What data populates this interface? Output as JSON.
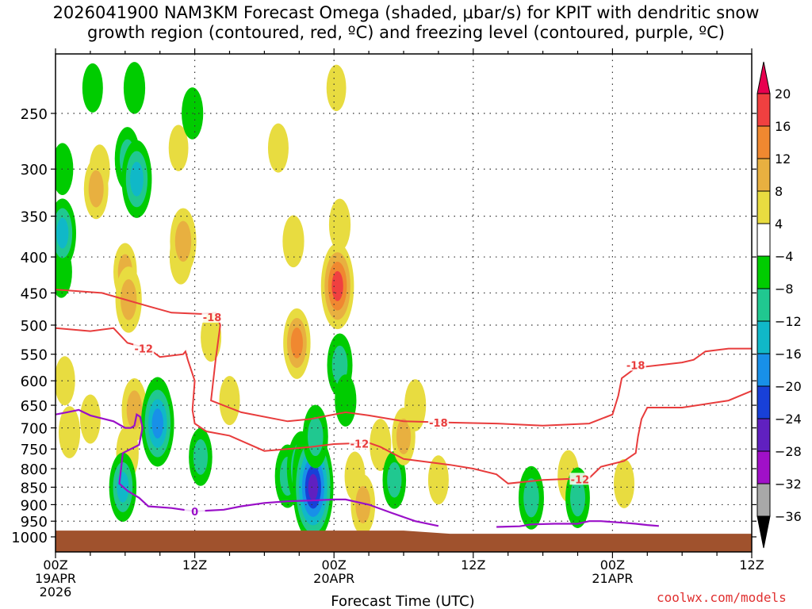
{
  "chart_data": {
    "type": "heatmap",
    "title_line1": "2026041900 NAM3KM Forecast Omega (shaded, μbar/s) for KPIT with dendritic snow",
    "title_line2": "growth region (contoured, red, ºC) and freezing level (contoured, purple, ºC)",
    "xlabel": "Forecast Time (UTC)",
    "ylabel": "",
    "x_unit": "hours since 2026-04-19 00Z",
    "xlim": [
      0,
      60
    ],
    "ylim": [
      1020,
      210
    ],
    "x_ticks": [
      {
        "x": 0,
        "label": "00Z",
        "sub1": "19APR",
        "sub2": "2026"
      },
      {
        "x": 12,
        "label": "12Z",
        "sub1": "",
        "sub2": ""
      },
      {
        "x": 24,
        "label": "00Z",
        "sub1": "20APR",
        "sub2": ""
      },
      {
        "x": 36,
        "label": "12Z",
        "sub1": "",
        "sub2": ""
      },
      {
        "x": 48,
        "label": "00Z",
        "sub1": "21APR",
        "sub2": ""
      },
      {
        "x": 60,
        "label": "12Z",
        "sub1": "",
        "sub2": ""
      }
    ],
    "y_ticks": [
      250,
      300,
      350,
      400,
      450,
      500,
      550,
      600,
      650,
      700,
      750,
      800,
      850,
      900,
      950,
      1000
    ],
    "colorbar": {
      "levels": [
        "20",
        "16",
        "12",
        "8",
        "4",
        "-4",
        "-8",
        "-12",
        "-16",
        "-20",
        "-24",
        "-28",
        "-32",
        "-36"
      ],
      "colors": [
        "#e8004f",
        "#f04040",
        "#f08830",
        "#e8b040",
        "#e8dc40",
        "#ffffff",
        "#00cc00",
        "#20c890",
        "#10b8c8",
        "#1890e8",
        "#1840d8",
        "#6020c0",
        "#a010c8",
        "#a8a8a8",
        "#000000"
      ]
    },
    "omega_cells": [
      {
        "t": 0.5,
        "p": 420,
        "v": -6
      },
      {
        "t": 0.6,
        "p": 370,
        "v": -12
      },
      {
        "t": 0.6,
        "p": 300,
        "v": -6
      },
      {
        "t": 1.2,
        "p": 710,
        "v": 6
      },
      {
        "t": 0.8,
        "p": 600,
        "v": 5
      },
      {
        "t": 3.8,
        "p": 300,
        "v": 5
      },
      {
        "t": 3.5,
        "p": 320,
        "v": 9
      },
      {
        "t": 3.2,
        "p": 230,
        "v": -5
      },
      {
        "t": 3.0,
        "p": 680,
        "v": 5
      },
      {
        "t": 6.2,
        "p": 290,
        "v": -10
      },
      {
        "t": 7.0,
        "p": 310,
        "v": -15
      },
      {
        "t": 6.8,
        "p": 230,
        "v": -6
      },
      {
        "t": 6.0,
        "p": 420,
        "v": 8
      },
      {
        "t": 6.3,
        "p": 460,
        "v": 11
      },
      {
        "t": 6.8,
        "p": 660,
        "v": 10
      },
      {
        "t": 6.2,
        "p": 760,
        "v": 7
      },
      {
        "t": 5.8,
        "p": 850,
        "v": -12
      },
      {
        "t": 8.8,
        "p": 670,
        "v": -14
      },
      {
        "t": 8.8,
        "p": 690,
        "v": -18
      },
      {
        "t": 10.8,
        "p": 400,
        "v": 7
      },
      {
        "t": 11.0,
        "p": 380,
        "v": 11
      },
      {
        "t": 10.6,
        "p": 280,
        "v": 4
      },
      {
        "t": 11.8,
        "p": 250,
        "v": -6
      },
      {
        "t": 12.5,
        "p": 770,
        "v": -8
      },
      {
        "t": 13.4,
        "p": 520,
        "v": 5
      },
      {
        "t": 15.0,
        "p": 640,
        "v": 5
      },
      {
        "t": 19.2,
        "p": 280,
        "v": 5
      },
      {
        "t": 20.5,
        "p": 380,
        "v": 6
      },
      {
        "t": 20.8,
        "p": 540,
        "v": 9
      },
      {
        "t": 20.8,
        "p": 530,
        "v": 12
      },
      {
        "t": 20.0,
        "p": 820,
        "v": -10
      },
      {
        "t": 21.2,
        "p": 800,
        "v": -14
      },
      {
        "t": 22.0,
        "p": 820,
        "v": -22
      },
      {
        "t": 22.2,
        "p": 850,
        "v": -26
      },
      {
        "t": 22.4,
        "p": 720,
        "v": -10
      },
      {
        "t": 24.3,
        "p": 430,
        "v": 12
      },
      {
        "t": 24.3,
        "p": 440,
        "v": 18
      },
      {
        "t": 24.5,
        "p": 360,
        "v": 6
      },
      {
        "t": 24.5,
        "p": 570,
        "v": -10
      },
      {
        "t": 25.0,
        "p": 640,
        "v": -6
      },
      {
        "t": 25.8,
        "p": 820,
        "v": 5
      },
      {
        "t": 26.5,
        "p": 900,
        "v": 9
      },
      {
        "t": 28.0,
        "p": 740,
        "v": 6
      },
      {
        "t": 29.2,
        "p": 830,
        "v": -8
      },
      {
        "t": 30.0,
        "p": 720,
        "v": 8
      },
      {
        "t": 31.0,
        "p": 650,
        "v": 6
      },
      {
        "t": 33.0,
        "p": 830,
        "v": 5
      },
      {
        "t": 41.0,
        "p": 880,
        "v": -10
      },
      {
        "t": 44.2,
        "p": 820,
        "v": 6
      },
      {
        "t": 45.0,
        "p": 880,
        "v": -9
      },
      {
        "t": 49.0,
        "p": 840,
        "v": 5
      },
      {
        "t": 24.2,
        "p": 230,
        "v": 4
      }
    ],
    "dgz_contours": [
      {
        "label": "-18",
        "points": [
          [
            0,
            445
          ],
          [
            4,
            450
          ],
          [
            8,
            470
          ],
          [
            10,
            480
          ],
          [
            12.5,
            482
          ],
          [
            13.8,
            480
          ],
          [
            14.2,
            500
          ],
          [
            13.8,
            560
          ],
          [
            13.4,
            640
          ],
          [
            16,
            665
          ],
          [
            20,
            685
          ],
          [
            22,
            680
          ],
          [
            25,
            665
          ],
          [
            27,
            672
          ],
          [
            30,
            685
          ],
          [
            34,
            688
          ],
          [
            38,
            690
          ],
          [
            42,
            695
          ],
          [
            46,
            690
          ],
          [
            48,
            670
          ],
          [
            48.5,
            630
          ],
          [
            48.8,
            595
          ],
          [
            50,
            575
          ],
          [
            54,
            565
          ],
          [
            55,
            560
          ],
          [
            56,
            545
          ],
          [
            58,
            540
          ],
          [
            60,
            540
          ]
        ]
      },
      {
        "label": "-12",
        "points": [
          [
            0,
            505
          ],
          [
            3,
            510
          ],
          [
            5,
            505
          ],
          [
            6.2,
            530
          ],
          [
            8,
            540
          ],
          [
            9,
            555
          ],
          [
            11,
            550
          ],
          [
            11.2,
            545
          ],
          [
            11.4,
            560
          ],
          [
            12,
            600
          ],
          [
            11.8,
            660
          ],
          [
            12,
            690
          ],
          [
            13,
            708
          ],
          [
            15,
            718
          ],
          [
            18,
            755
          ],
          [
            20,
            750
          ],
          [
            22,
            745
          ],
          [
            24,
            738
          ],
          [
            27,
            735
          ],
          [
            28,
            745
          ],
          [
            30,
            775
          ],
          [
            34,
            790
          ],
          [
            36,
            800
          ],
          [
            38,
            815
          ],
          [
            39,
            840
          ],
          [
            42,
            830
          ],
          [
            46,
            825
          ],
          [
            47,
            795
          ],
          [
            49,
            780
          ],
          [
            50,
            760
          ],
          [
            50.2,
            720
          ],
          [
            50.5,
            680
          ],
          [
            51,
            655
          ],
          [
            54,
            655
          ],
          [
            58,
            640
          ],
          [
            60,
            620
          ]
        ]
      }
    ],
    "freezing_level": {
      "label": "0",
      "points": [
        [
          0,
          670
        ],
        [
          1,
          665
        ],
        [
          2,
          660
        ],
        [
          3,
          672
        ],
        [
          5,
          685
        ],
        [
          6,
          700
        ],
        [
          6.5,
          700
        ],
        [
          6.8,
          695
        ],
        [
          7.0,
          670
        ],
        [
          7.3,
          675
        ],
        [
          7.5,
          700
        ],
        [
          7.2,
          740
        ],
        [
          5.8,
          760
        ],
        [
          5.5,
          840
        ],
        [
          6.2,
          860
        ],
        [
          7.2,
          880
        ],
        [
          8,
          905
        ],
        [
          10,
          910
        ],
        [
          11,
          915
        ],
        [
          12,
          920
        ],
        [
          13,
          918
        ],
        [
          14.5,
          915
        ],
        [
          16,
          905
        ],
        [
          18,
          895
        ],
        [
          20,
          890
        ],
        [
          22,
          888
        ],
        [
          24,
          885
        ],
        [
          25,
          885
        ],
        [
          27,
          900
        ],
        [
          29,
          925
        ],
        [
          31,
          950
        ],
        [
          33,
          965
        ]
      ],
      "points2": [
        [
          38,
          968
        ],
        [
          40,
          966
        ],
        [
          41,
          960
        ],
        [
          43,
          958
        ],
        [
          45,
          958
        ],
        [
          46,
          950
        ],
        [
          47,
          950
        ],
        [
          49,
          955
        ],
        [
          50,
          958
        ],
        [
          51,
          962
        ],
        [
          52,
          965
        ]
      ]
    },
    "surface_color": "#a0522d",
    "credit": "coolwx.com/models"
  }
}
